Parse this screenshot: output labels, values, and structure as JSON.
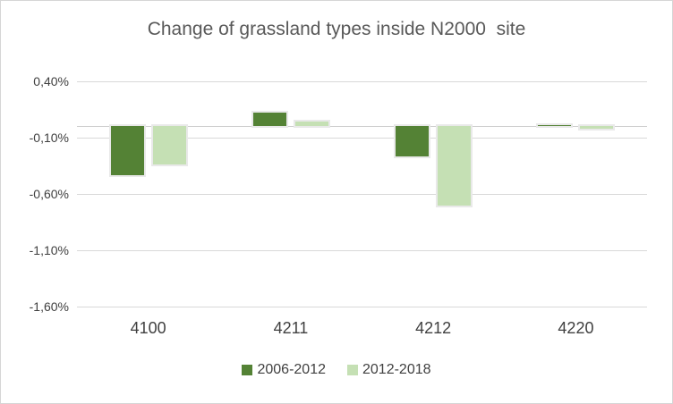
{
  "chart_data": {
    "type": "bar",
    "title": "Change of grassland types inside N2000  site",
    "categories": [
      "4100",
      "4211",
      "4212",
      "4220"
    ],
    "series": [
      {
        "name": "2006-2012",
        "color": "#548235",
        "values": [
          -0.43,
          0.12,
          -0.27,
          0.01
        ]
      },
      {
        "name": "2012-2018",
        "color": "#c5e0b4",
        "values": [
          -0.34,
          0.04,
          -0.7,
          -0.02
        ]
      }
    ],
    "ylim": [
      -1.6,
      0.4
    ],
    "yticks": [
      {
        "value": 0.4,
        "label": "0,40%"
      },
      {
        "value": -0.1,
        "label": "-0,10%"
      },
      {
        "value": -0.6,
        "label": "-0,60%"
      },
      {
        "value": -1.1,
        "label": "-1,10%"
      },
      {
        "value": -1.6,
        "label": "-1,60%"
      }
    ],
    "unit": "%",
    "grid": true,
    "legend_position": "bottom"
  },
  "colors": {
    "gridline": "#d9d9d9",
    "zero_axis": "#cfcfcf",
    "title_text": "#595959",
    "label_text": "#404040",
    "figure_border": "#d6d6d6",
    "bar_outline": "#e9e9e9",
    "background": "#ffffff"
  }
}
